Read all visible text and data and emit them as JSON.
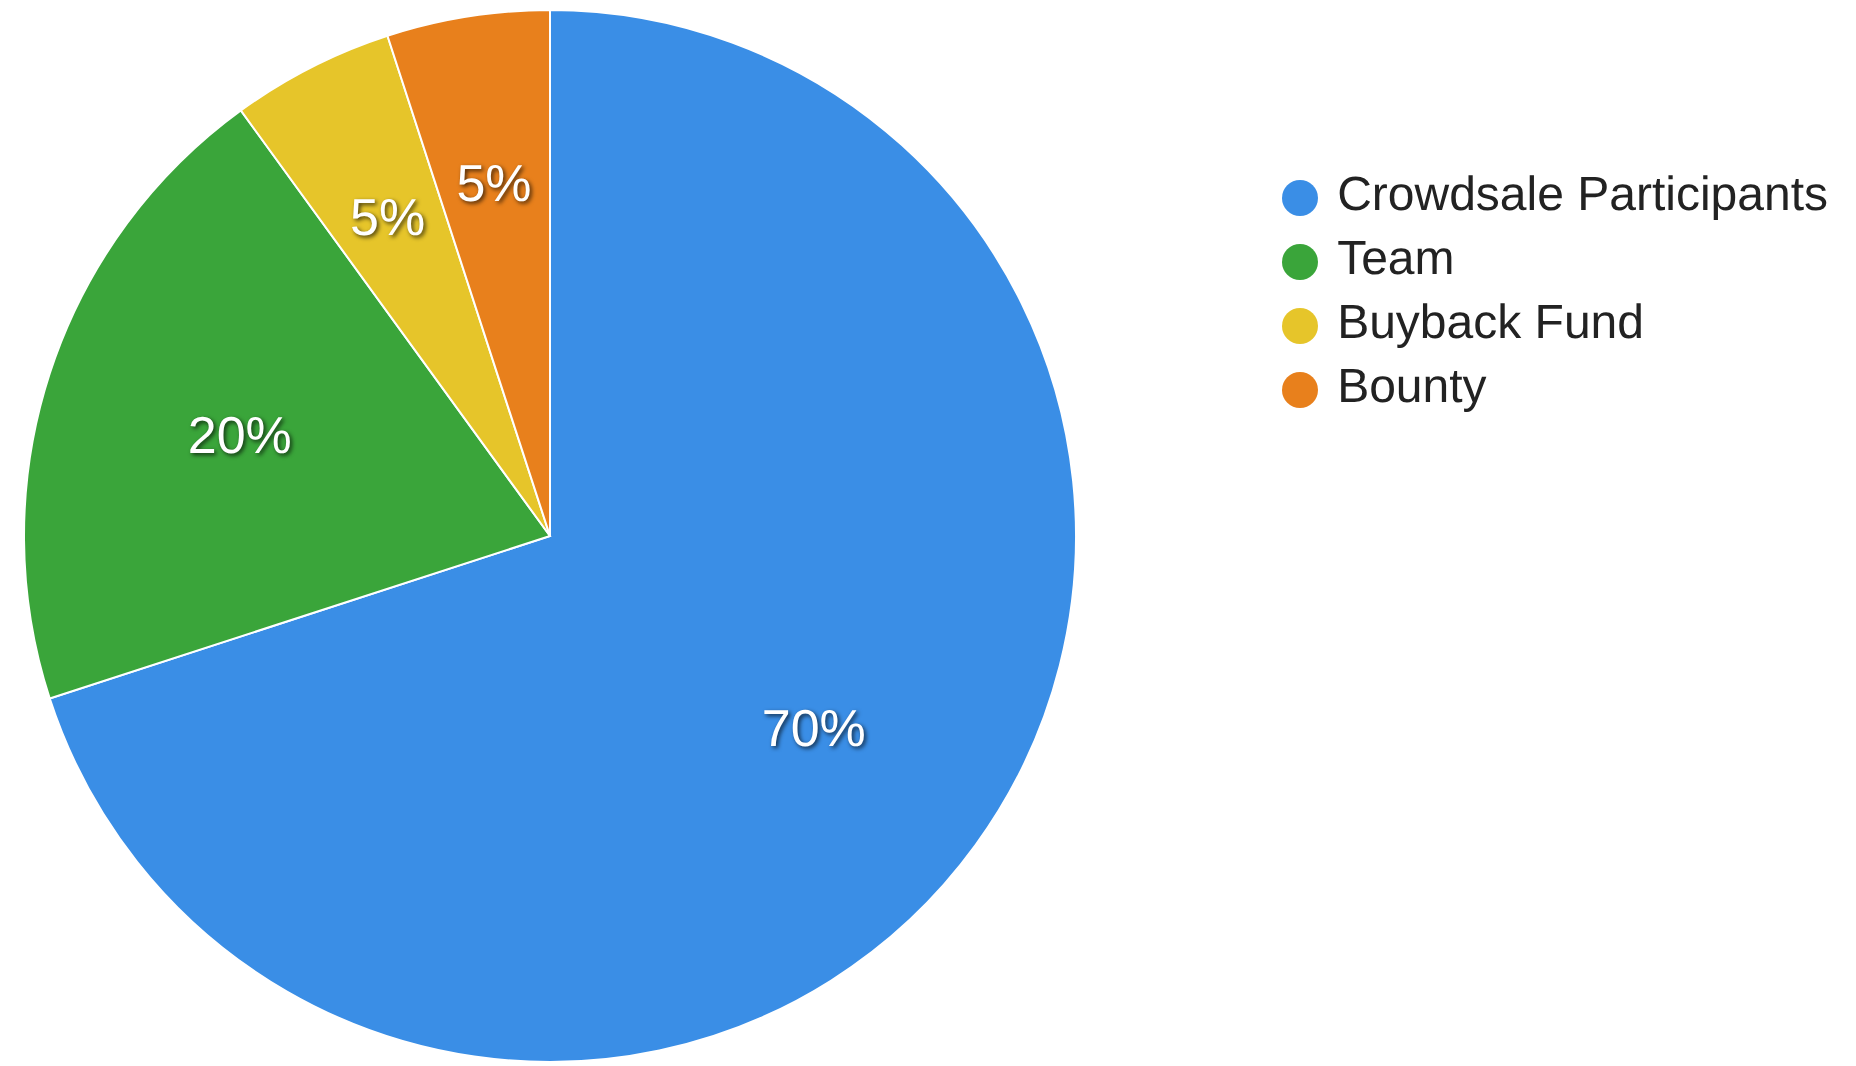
{
  "chart_data": {
    "type": "pie",
    "categories": [
      "Crowdsale Participants",
      "Team",
      "Buyback Fund",
      "Bounty"
    ],
    "values": [
      70,
      20,
      5,
      5
    ],
    "value_labels": [
      "70%",
      "20%",
      "5%",
      "5%"
    ],
    "colors": [
      "#3a8ee6",
      "#3aa53a",
      "#e6c52a",
      "#e8801c"
    ],
    "legend": "top right"
  }
}
